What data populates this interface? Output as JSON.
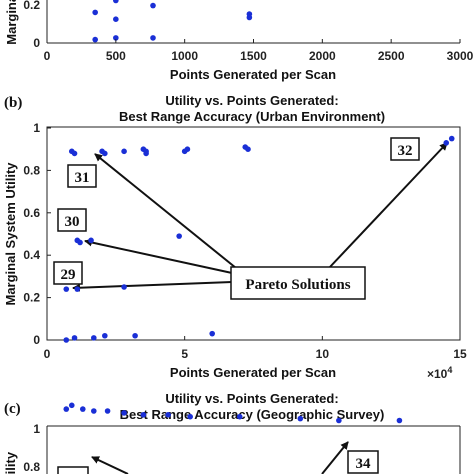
{
  "chart_data": [
    {
      "type": "scatter",
      "panel": "a (partial)",
      "ylabel": "Marginal",
      "xlabel": "Points Generated per Scan",
      "x_ticks": [
        "0",
        "500",
        "1000",
        "1500",
        "2000",
        "2500",
        "3000"
      ],
      "y_ticks": [
        "0.2",
        "0"
      ],
      "xlim": [
        0,
        3000
      ],
      "series": [
        {
          "color": "#1a2fd6",
          "points": [
            [
              350,
              0.28
            ],
            [
              350,
              0.18
            ],
            [
              350,
              0.02
            ],
            [
              500,
              0.29
            ],
            [
              500,
              0.25
            ],
            [
              500,
              0.14
            ],
            [
              500,
              0.03
            ],
            [
              770,
              0.29
            ],
            [
              770,
              0.22
            ],
            [
              770,
              0.03
            ],
            [
              1470,
              0.17
            ],
            [
              1470,
              0.15
            ]
          ]
        }
      ]
    },
    {
      "type": "scatter",
      "panel": "(b)",
      "title_line1": "Utility vs. Points Generated:",
      "title_line2": "Best Range Accuracy (Urban Environment)",
      "ylabel": "Marginal System Utility",
      "xlabel": "Points Generated per Scan",
      "x_exponent": "×10",
      "x_exponent_power": "4",
      "x_ticks": [
        "0",
        "5",
        "10",
        "15"
      ],
      "y_ticks": [
        "0",
        "0.2",
        "0.4",
        "0.6",
        "0.8",
        "1"
      ],
      "xlim": [
        0,
        15
      ],
      "ylim": [
        0,
        1
      ],
      "callouts": [
        "31",
        "30",
        "29",
        "32"
      ],
      "annotation": "Pareto Solutions",
      "series": [
        {
          "color": "#1a2fd6",
          "points": [
            [
              0.9,
              0.89
            ],
            [
              1.0,
              0.88
            ],
            [
              2.0,
              0.89
            ],
            [
              2.1,
              0.88
            ],
            [
              2.8,
              0.89
            ],
            [
              3.5,
              0.9
            ],
            [
              3.6,
              0.89
            ],
            [
              3.6,
              0.88
            ],
            [
              5.0,
              0.89
            ],
            [
              5.1,
              0.9
            ],
            [
              7.2,
              0.91
            ],
            [
              7.3,
              0.9
            ],
            [
              14.7,
              0.95
            ],
            [
              14.5,
              0.93
            ],
            [
              1.1,
              0.47
            ],
            [
              1.2,
              0.46
            ],
            [
              1.6,
              0.47
            ],
            [
              4.8,
              0.49
            ],
            [
              0.7,
              0.24
            ],
            [
              1.1,
              0.24
            ],
            [
              2.8,
              0.25
            ],
            [
              0.7,
              0.0
            ],
            [
              1.0,
              0.01
            ],
            [
              1.7,
              0.01
            ],
            [
              2.1,
              0.02
            ],
            [
              3.2,
              0.02
            ],
            [
              6.0,
              0.03
            ]
          ]
        }
      ]
    },
    {
      "type": "scatter",
      "panel": "(c)",
      "title_line1": "Utility vs. Points Generated:",
      "title_line2": "Best Range Accuracy (Geographic Survey)",
      "ylabel": "Utility",
      "y_ticks": [
        "1",
        "0.8"
      ],
      "callouts": [
        "34"
      ],
      "series": [
        {
          "color": "#1a2fd6",
          "points": [
            [
              0.7,
              0.89
            ],
            [
              0.9,
              0.87
            ],
            [
              1.3,
              0.89
            ],
            [
              1.7,
              0.9
            ],
            [
              2.2,
              0.9
            ],
            [
              2.8,
              0.91
            ],
            [
              3.5,
              0.92
            ],
            [
              4.4,
              0.92
            ],
            [
              5.2,
              0.93
            ],
            [
              7.0,
              0.93
            ],
            [
              9.2,
              0.94
            ],
            [
              10.6,
              0.95
            ],
            [
              12.8,
              0.95
            ]
          ]
        }
      ]
    }
  ]
}
